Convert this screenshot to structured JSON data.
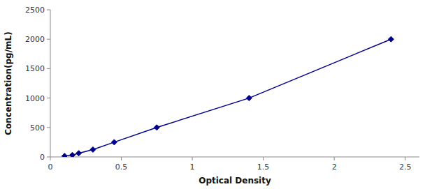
{
  "chart_data": {
    "type": "line",
    "x": [
      0.1,
      0.155,
      0.2,
      0.3,
      0.45,
      0.75,
      1.4,
      2.4
    ],
    "values": [
      15.6,
      31.25,
      62.5,
      125,
      250,
      500,
      1000,
      2000
    ],
    "color": "#00008B",
    "marker": "diamond",
    "xlabel": "Optical Density",
    "ylabel": "Concentration(pg/mL)",
    "xlim": [
      0,
      2.6
    ],
    "ylim": [
      0,
      2500
    ],
    "xticks": [
      0,
      0.5,
      1,
      1.5,
      2,
      2.5
    ],
    "yticks": [
      0,
      500,
      1000,
      1500,
      2000,
      2500
    ]
  }
}
